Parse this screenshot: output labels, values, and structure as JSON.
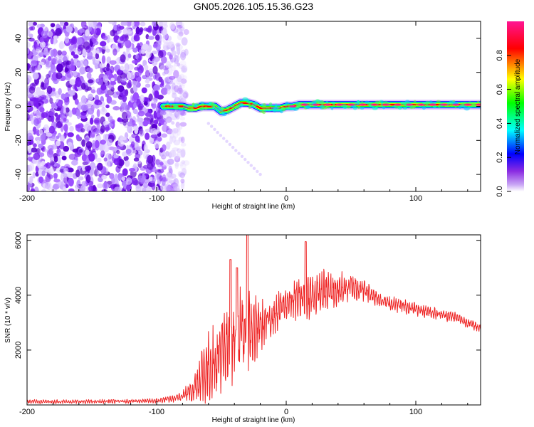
{
  "title": "GN05.2026.105.15.36.G23",
  "chart_data": [
    {
      "type": "heatmap",
      "name": "spectrogram",
      "xlabel": "Height of straight line (km)",
      "ylabel": "Frequency (Hz)",
      "xlim": [
        -200,
        150
      ],
      "ylim": [
        -50,
        50
      ],
      "x_ticks": [
        -200,
        -100,
        0,
        100
      ],
      "y_ticks": [
        -40,
        -20,
        0,
        20,
        40
      ],
      "noise_region_x": [
        -200,
        -77
      ],
      "signal_track": {
        "x": [
          -95,
          -90,
          -85,
          -80,
          -75,
          -70,
          -65,
          -60,
          -55,
          -50,
          -45,
          -40,
          -35,
          -30,
          -25,
          -20,
          -15,
          -10,
          -5,
          0,
          5,
          10,
          20,
          30,
          40,
          50,
          60,
          70,
          80,
          90,
          100,
          110,
          120,
          130,
          140,
          150
        ],
        "freq": [
          0,
          0,
          0,
          0,
          -1,
          -1,
          0,
          0,
          0,
          -3,
          -2,
          0,
          2,
          2,
          1,
          -1,
          -1,
          -1,
          -1,
          0,
          0,
          1,
          1,
          1,
          1,
          1,
          1,
          1,
          1,
          1,
          1,
          1,
          1,
          1,
          1,
          1
        ]
      },
      "faint_tail": {
        "x": [
          -60,
          -20
        ],
        "freq": [
          -10,
          -40
        ]
      },
      "colorbar": {
        "label": "Normalized spectral amplitude",
        "range": [
          0.0,
          1.0
        ],
        "ticks": [
          "0.0",
          "0.2",
          "0.4",
          "0.6",
          "0.8"
        ],
        "colors": [
          "#ffffff",
          "#8a2be2",
          "#0000ff",
          "#00ffff",
          "#00ff00",
          "#ffff00",
          "#ff0000",
          "#ff1493"
        ]
      }
    },
    {
      "type": "line",
      "name": "snr",
      "xlabel": "Height of straight line (km)",
      "ylabel": "SNR (10 * v/v)",
      "xlim": [
        -200,
        150
      ],
      "ylim": [
        0,
        6200
      ],
      "x_ticks": [
        -200,
        -100,
        0,
        100
      ],
      "y_ticks": [
        2000,
        4000,
        6000
      ],
      "color": "#ee2222",
      "envelope": {
        "x": [
          -200,
          -150,
          -100,
          -85,
          -78,
          -72,
          -68,
          -62,
          -55,
          -45,
          -35,
          -25,
          -15,
          -5,
          0,
          10,
          20,
          30,
          40,
          50,
          60,
          70,
          80,
          90,
          100,
          110,
          120,
          130,
          140,
          150
        ],
        "base": [
          120,
          120,
          150,
          250,
          400,
          550,
          900,
          1300,
          1600,
          2100,
          2600,
          2800,
          3000,
          3500,
          3700,
          3900,
          4000,
          4100,
          4200,
          4300,
          4200,
          3900,
          3700,
          3600,
          3500,
          3400,
          3300,
          3200,
          3000,
          2800
        ],
        "amp": [
          80,
          80,
          90,
          150,
          300,
          600,
          900,
          1300,
          1500,
          1700,
          1800,
          1500,
          900,
          700,
          700,
          800,
          900,
          900,
          700,
          600,
          450,
          350,
          300,
          280,
          260,
          250,
          240,
          220,
          200,
          200
        ]
      },
      "peaks": [
        {
          "x": -30,
          "y": 6200
        },
        {
          "x": 15,
          "y": 5950
        },
        {
          "x": -43,
          "y": 5300
        },
        {
          "x": -38,
          "y": 5000
        }
      ]
    }
  ]
}
